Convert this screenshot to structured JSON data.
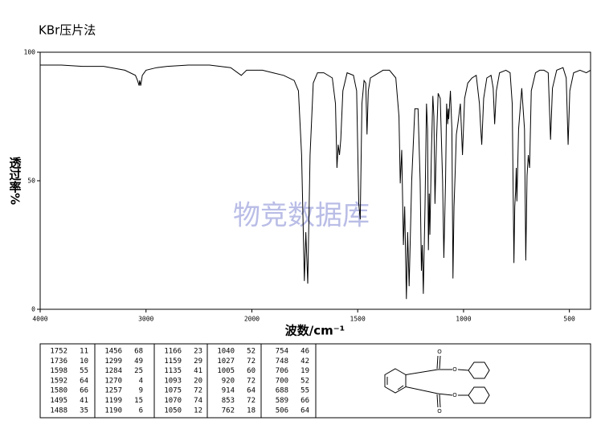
{
  "chart_data": {
    "type": "line",
    "title": "KBr压片法",
    "xlabel": "波数/cm⁻¹",
    "ylabel": "透过率%",
    "watermark": "物竞数据库",
    "xlim": [
      4000,
      400
    ],
    "ylim": [
      0,
      100
    ],
    "xticks": [
      4000,
      3000,
      2000,
      1500,
      1000,
      500
    ],
    "yticks": [
      0,
      50,
      100
    ],
    "x_scale_break": 2000,
    "series": [
      {
        "color": "#000000",
        "x": [
          4000,
          3800,
          3600,
          3400,
          3200,
          3100,
          3080,
          3065,
          3060,
          3050,
          3035,
          3000,
          2900,
          2800,
          2600,
          2400,
          2200,
          2100,
          2050,
          2000,
          1950,
          1900,
          1850,
          1800,
          1780,
          1765,
          1752,
          1745,
          1736,
          1725,
          1710,
          1690,
          1660,
          1620,
          1605,
          1598,
          1592,
          1586,
          1580,
          1570,
          1550,
          1520,
          1505,
          1495,
          1488,
          1480,
          1470,
          1462,
          1456,
          1450,
          1440,
          1420,
          1400,
          1380,
          1350,
          1320,
          1305,
          1299,
          1292,
          1284,
          1278,
          1270,
          1264,
          1257,
          1245,
          1230,
          1215,
          1205,
          1199,
          1195,
          1190,
          1182,
          1175,
          1170,
          1166,
          1162,
          1159,
          1152,
          1145,
          1140,
          1135,
          1128,
          1120,
          1110,
          1099,
          1093,
          1085,
          1080,
          1075,
          1072,
          1070,
          1062,
          1055,
          1050,
          1045,
          1040,
          1034,
          1027,
          1015,
          1005,
          995,
          980,
          960,
          940,
          925,
          920,
          914,
          905,
          890,
          870,
          860,
          853,
          845,
          830,
          800,
          780,
          770,
          762,
          758,
          754,
          751,
          748,
          740,
          725,
          712,
          706,
          703,
          700,
          694,
          688,
          680,
          660,
          640,
          620,
          600,
          589,
          580,
          560,
          530,
          515,
          506,
          498,
          480,
          450,
          420,
          400
        ],
        "values": [
          95,
          95,
          94.5,
          94.5,
          93,
          91,
          89,
          87,
          89,
          87,
          91,
          93,
          94,
          94.5,
          95,
          95,
          94,
          91,
          93,
          93,
          93,
          92,
          91,
          89,
          85,
          60,
          11,
          30,
          10,
          60,
          88,
          92,
          92,
          90,
          80,
          55,
          64,
          60,
          66,
          85,
          92,
          91,
          85,
          41,
          35,
          80,
          89,
          88,
          68,
          85,
          90,
          91,
          92,
          93,
          93,
          90,
          75,
          49,
          62,
          25,
          40,
          4,
          30,
          9,
          50,
          78,
          78,
          50,
          15,
          25,
          6,
          40,
          80,
          70,
          23,
          45,
          29,
          60,
          83,
          75,
          41,
          65,
          84,
          82,
          50,
          20,
          50,
          80,
          72,
          78,
          74,
          85,
          70,
          12,
          40,
          52,
          68,
          72,
          80,
          60,
          82,
          88,
          90,
          91,
          80,
          72,
          64,
          82,
          90,
          91,
          86,
          72,
          85,
          92,
          93,
          92,
          80,
          18,
          40,
          46,
          55,
          42,
          70,
          86,
          70,
          19,
          35,
          52,
          60,
          55,
          85,
          92,
          93,
          93,
          92,
          66,
          86,
          93,
          94,
          90,
          64,
          85,
          92,
          93,
          92,
          93
        ]
      }
    ]
  },
  "peak_table": {
    "columns": [
      [
        [
          1752,
          11
        ],
        [
          1736,
          10
        ],
        [
          1598,
          55
        ],
        [
          1592,
          64
        ],
        [
          1580,
          66
        ],
        [
          1495,
          41
        ],
        [
          1488,
          35
        ]
      ],
      [
        [
          1456,
          68
        ],
        [
          1299,
          49
        ],
        [
          1284,
          25
        ],
        [
          1270,
          4
        ],
        [
          1257,
          9
        ],
        [
          1199,
          15
        ],
        [
          1190,
          6
        ]
      ],
      [
        [
          1166,
          23
        ],
        [
          1159,
          29
        ],
        [
          1135,
          41
        ],
        [
          1093,
          20
        ],
        [
          1075,
          72
        ],
        [
          1070,
          74
        ],
        [
          1050,
          12
        ]
      ],
      [
        [
          1040,
          52
        ],
        [
          1027,
          72
        ],
        [
          1005,
          60
        ],
        [
          920,
          72
        ],
        [
          914,
          64
        ],
        [
          853,
          72
        ],
        [
          762,
          18
        ]
      ],
      [
        [
          754,
          46
        ],
        [
          748,
          42
        ],
        [
          706,
          19
        ],
        [
          700,
          52
        ],
        [
          688,
          55
        ],
        [
          589,
          66
        ],
        [
          506,
          64
        ]
      ]
    ]
  },
  "structure": {
    "atoms": [
      "O",
      "O",
      "O",
      "O"
    ]
  }
}
